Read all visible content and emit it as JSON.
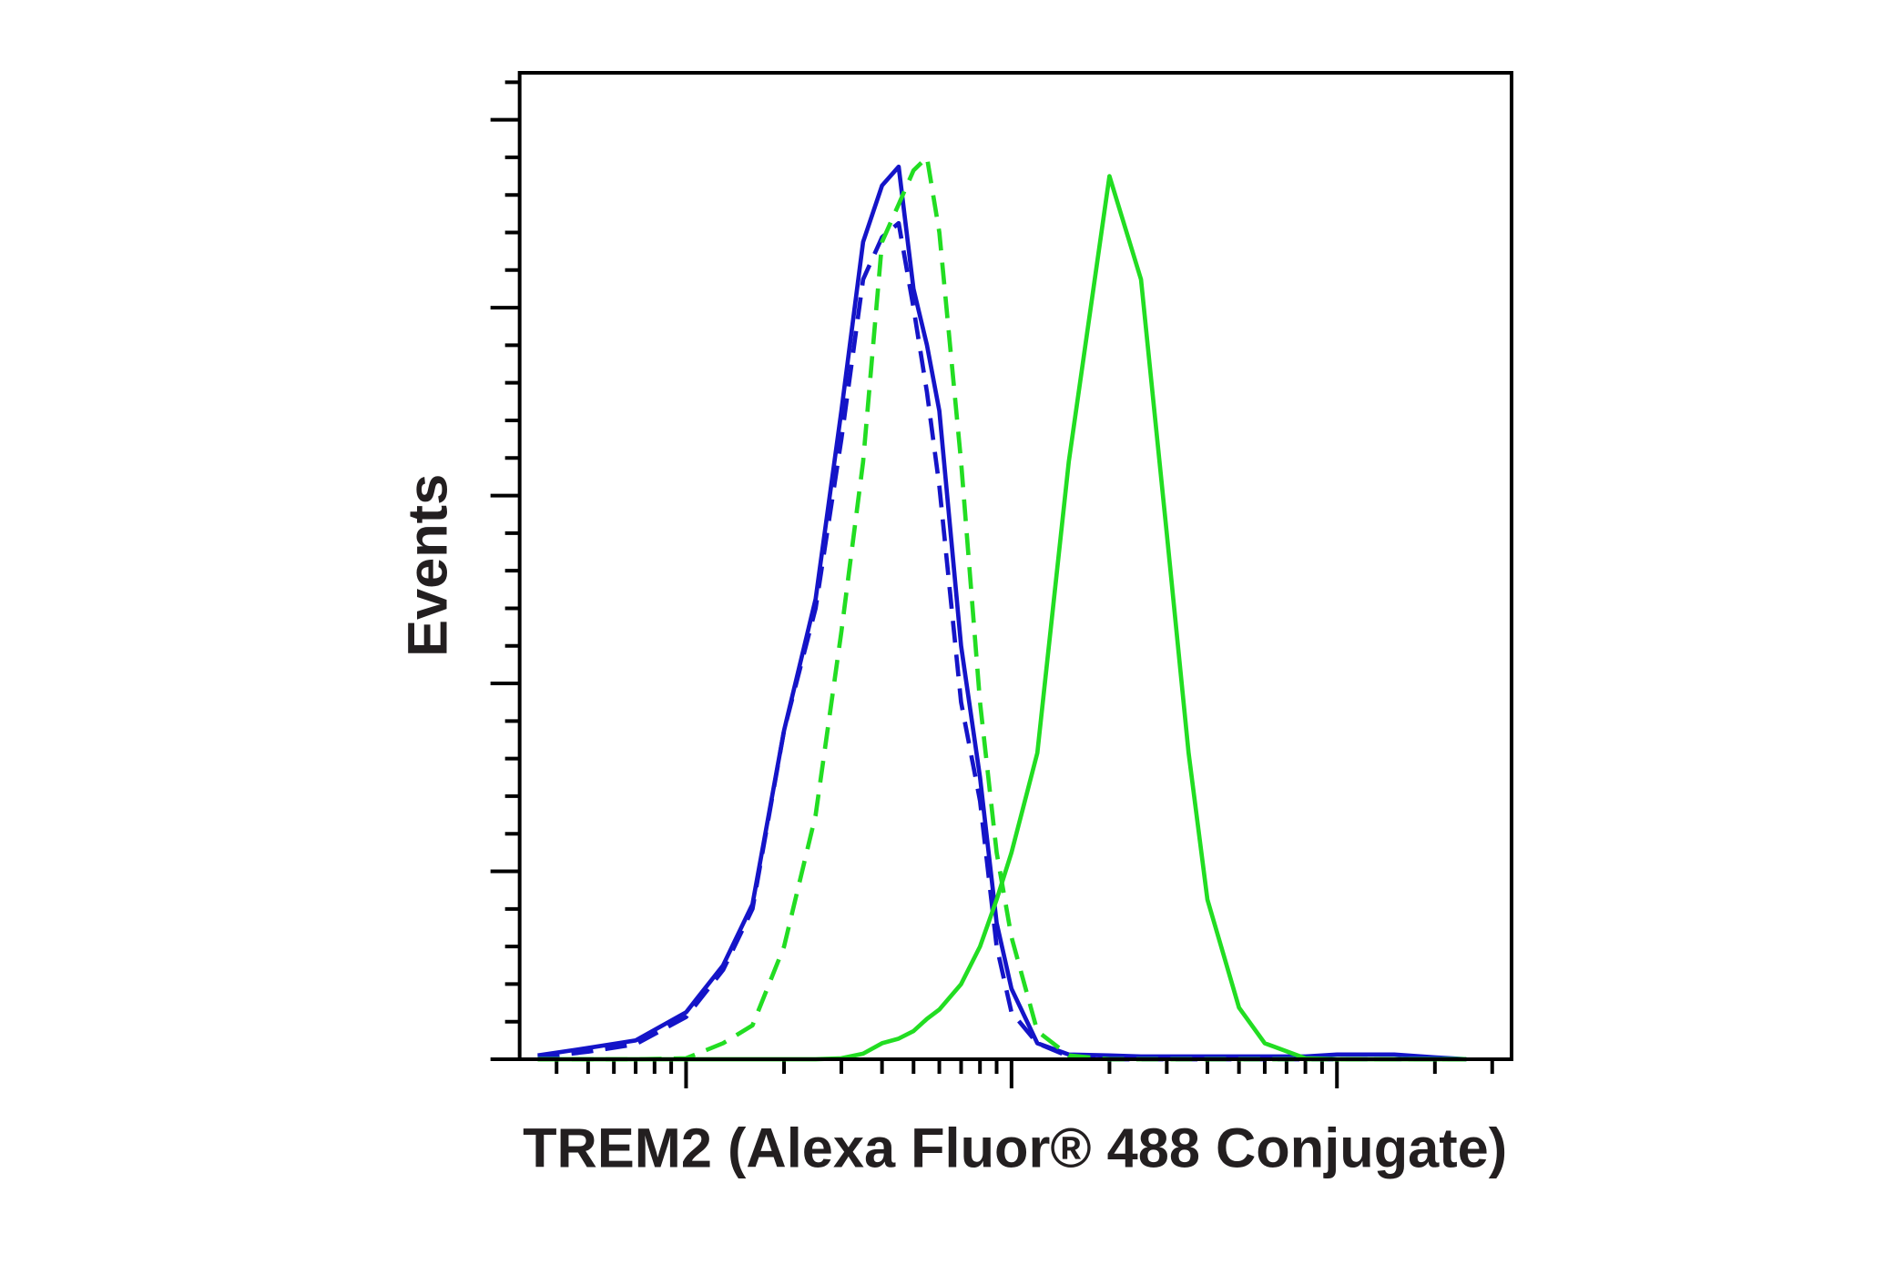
{
  "chart_data": {
    "type": "line",
    "xlabel": "TREM2 (Alexa Fluor® 488 Conjugate)",
    "ylabel": "Events",
    "xscale": "log",
    "xlim": [
      30.8,
      34400
    ],
    "ylim": [
      0,
      105
    ],
    "xticks": [
      100,
      1000,
      10000
    ],
    "xminor_ticks": [
      40,
      50,
      60,
      70,
      80,
      90,
      200,
      300,
      400,
      500,
      600,
      700,
      800,
      900,
      2000,
      3000,
      4000,
      5000,
      6000,
      7000,
      8000,
      9000,
      20000,
      30000
    ],
    "yticks": [
      0,
      20,
      40,
      60,
      80,
      100
    ],
    "yminor_ticks": [
      4,
      8,
      12,
      16,
      24,
      28,
      32,
      36,
      44,
      48,
      52,
      56,
      64,
      68,
      72,
      76,
      84,
      88,
      92,
      96,
      104
    ],
    "x": [
      35,
      50,
      70,
      100,
      130,
      160,
      200,
      250,
      300,
      350,
      400,
      450,
      500,
      550,
      600,
      700,
      800,
      900,
      1000,
      1200,
      1500,
      2000,
      2500,
      3000,
      3500,
      4000,
      5000,
      6000,
      8000,
      10000,
      15000,
      20000,
      25000
    ],
    "series": [
      {
        "color": "#1414c8",
        "dash": false,
        "values": [
          0.4,
          1.2,
          2,
          5,
          10,
          16.5,
          35,
          49,
          69,
          87,
          93,
          95,
          82,
          76,
          69,
          44,
          30,
          14.5,
          7.5,
          1.7,
          0.5,
          0.4,
          0.3,
          0.3,
          0.3,
          0.3,
          0.3,
          0.3,
          0.3,
          0.5,
          0.5,
          0.2,
          0
        ]
      },
      {
        "color": "#1414c8",
        "dash": true,
        "values": [
          0.2,
          0.8,
          1.6,
          4.5,
          9.5,
          16,
          35,
          48,
          66,
          83,
          87.5,
          89,
          80,
          71,
          61,
          38,
          27.5,
          12,
          5,
          1.7,
          0.3,
          0,
          0,
          0,
          0,
          0,
          0,
          0,
          0,
          0,
          0,
          0,
          0
        ]
      },
      {
        "color": "#22dd22",
        "dash": true,
        "values": [
          0,
          0,
          0,
          0.1,
          1.7,
          3.6,
          12,
          26,
          45.5,
          63.6,
          87,
          91,
          94.6,
          96,
          88,
          63.6,
          38,
          22,
          13,
          3,
          0.4,
          0,
          0,
          0,
          0,
          0,
          0,
          0,
          0,
          0,
          0,
          0,
          0
        ]
      },
      {
        "color": "#22dd22",
        "dash": false,
        "values": [
          0,
          0,
          0,
          0,
          0,
          0,
          0,
          0,
          0.1,
          0.6,
          1.7,
          2.2,
          3,
          4.3,
          5.3,
          8,
          12,
          17,
          22,
          32.6,
          63.6,
          94,
          83,
          56,
          32.6,
          17,
          5.5,
          1.7,
          0.1,
          0,
          0,
          0,
          0
        ]
      }
    ]
  }
}
